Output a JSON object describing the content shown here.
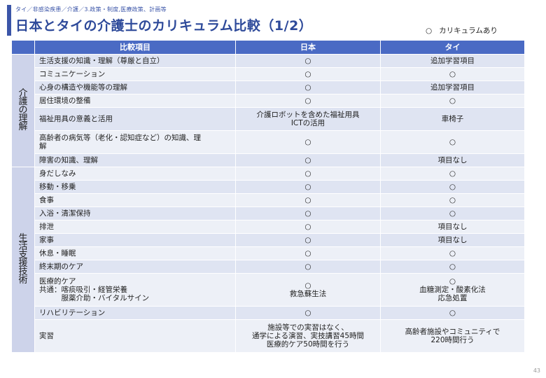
{
  "breadcrumb": "タイ／非感染疾患／介護／3.政策・制度,医療政策、計画等",
  "title": "日本とタイの介護士のカリキュラム比較（1/2）",
  "legend": {
    "mark": "○",
    "text": "カリキュラムあり"
  },
  "colors": {
    "accent": "#3b55a8",
    "header": "#4a6ac4",
    "row_dark": "#dfe4f2",
    "row_light": "#edf0f7",
    "group_cell": "#cdd3ea"
  },
  "table": {
    "headers": [
      "比較項目",
      "日本",
      "タイ"
    ],
    "groups": [
      {
        "label": "介護の理解",
        "rows": [
          {
            "item": "生活支援の知識・理解（尊厳と自立）",
            "japan": "○",
            "thai": "追加学習項目",
            "h": 19
          },
          {
            "item": "コミュニケーション",
            "japan": "○",
            "thai": "○",
            "h": 19
          },
          {
            "item": "心身の構造や機能等の理解",
            "japan": "○",
            "thai": "追加学習項目",
            "h": 19
          },
          {
            "item": "居住環境の整備",
            "japan": "○",
            "thai": "○",
            "h": 19
          },
          {
            "item": "福祉用具の意義と活用",
            "japan": "介護ロボットを含めた福祉用具\nICTの活用",
            "thai": "車椅子",
            "h": 33
          },
          {
            "item": "高齢者の病気等（老化・認知症など）の知識、理\n解",
            "japan": "○",
            "thai": "○",
            "h": 33
          },
          {
            "item": "障害の知識、理解",
            "japan": "○",
            "thai": "項目なし",
            "h": 19
          }
        ]
      },
      {
        "label": "生活支援技術",
        "rows": [
          {
            "item": "身だしなみ",
            "japan": "○",
            "thai": "○",
            "h": 19
          },
          {
            "item": "移動・移乗",
            "japan": "○",
            "thai": "○",
            "h": 19
          },
          {
            "item": "食事",
            "japan": "○",
            "thai": "○",
            "h": 19
          },
          {
            "item": "入浴・清潔保持",
            "japan": "○",
            "thai": "○",
            "h": 19
          },
          {
            "item": "排泄",
            "japan": "○",
            "thai": "項目なし",
            "h": 19
          },
          {
            "item": "家事",
            "japan": "○",
            "thai": "項目なし",
            "h": 19
          },
          {
            "item": "休息・睡眠",
            "japan": "○",
            "thai": "○",
            "h": 19
          },
          {
            "item": "終末期のケア",
            "japan": "○",
            "thai": "○",
            "h": 19
          },
          {
            "item": "医療的ケア\n共通：喀痰吸引・経管栄養\n　　　服薬介助・バイタルサイン",
            "japan": "○\n救急蘇生法",
            "thai": "○\n血糖測定・酸素化法\n応急処置",
            "h": 47
          },
          {
            "item": "リハビリテーション",
            "japan": "○",
            "thai": "○",
            "h": 19
          },
          {
            "item": "実習",
            "japan": "施設等での実習はなく、\n通学による演習、実技講習45時間\n医療的ケア50時間を行う",
            "thai": "高齢者施設やコミュニティで\n220時間行う",
            "h": 47
          }
        ]
      }
    ]
  },
  "page_number": "43"
}
